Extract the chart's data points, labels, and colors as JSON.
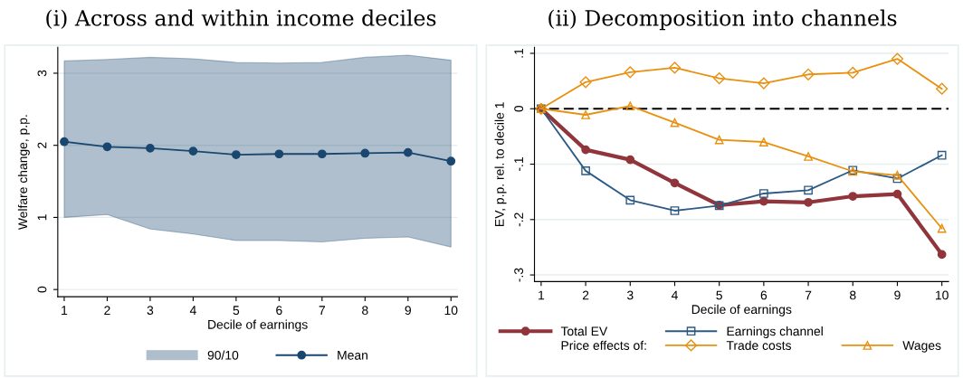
{
  "chart_data": [
    {
      "type": "line",
      "title": "(i) Across and within income deciles",
      "xlabel": "Decile of earnings",
      "ylabel": "Welfare change, p.p.",
      "x": [
        1,
        2,
        3,
        4,
        5,
        6,
        7,
        8,
        9,
        10
      ],
      "xlim": [
        0.85,
        10.15
      ],
      "xticks": [
        1,
        2,
        3,
        4,
        5,
        6,
        7,
        8,
        9,
        10
      ],
      "ylim": [
        -0.1,
        3.36
      ],
      "yticks": [
        0,
        1,
        2,
        3
      ],
      "grid": "y",
      "legend": "bottom",
      "annotations": [
        "90/10"
      ],
      "series": [
        {
          "name": "Mean",
          "type": "line",
          "lower": [
            1.0,
            1.04,
            0.84,
            0.77,
            0.68,
            0.68,
            0.66,
            0.71,
            0.73,
            0.59
          ],
          "upper": [
            3.17,
            3.19,
            3.22,
            3.2,
            3.15,
            3.14,
            3.15,
            3.22,
            3.25,
            3.18
          ],
          "color": "#1a476f",
          "marker": "circle",
          "values": [
            2.05,
            1.98,
            1.96,
            1.92,
            1.87,
            1.88,
            1.88,
            1.89,
            1.9,
            1.78
          ]
        }
      ]
    },
    {
      "type": "line",
      "title": "(ii) Decomposition into channels",
      "xlabel": "Decile of earnings",
      "ylabel": "EV, p.p. rel. to decile 1",
      "x": [
        1,
        2,
        3,
        4,
        5,
        6,
        7,
        8,
        9,
        10
      ],
      "xlim": [
        0.85,
        10.15
      ],
      "xticks": [
        1,
        2,
        3,
        4,
        5,
        6,
        7,
        8,
        9,
        10
      ],
      "ylim": [
        -0.312,
        0.111
      ],
      "yticks": [
        {
          "value": -0.3,
          "label": "-.3"
        },
        {
          "value": -0.2,
          "label": "-.2"
        },
        {
          "value": -0.1,
          "label": "-.1"
        },
        {
          "value": 0,
          "label": "0"
        },
        {
          "value": 0.1,
          "label": ".1"
        }
      ],
      "grid": "y",
      "legend": "bottom",
      "annotations": [
        "Price effects of:"
      ],
      "ref_lines": [
        {
          "axis": "y",
          "value": 0,
          "color": "#000000",
          "line_style": "dashed"
        }
      ],
      "series": [
        {
          "name": "Total EV",
          "type": "line",
          "color": "#90353b",
          "marker": "circle",
          "values": [
            0,
            -0.074,
            -0.092,
            -0.134,
            -0.174,
            -0.167,
            -0.169,
            -0.158,
            -0.154,
            -0.263
          ]
        },
        {
          "name": "Earnings channel",
          "type": "line",
          "color": "#2d5a84",
          "marker": "square",
          "values": [
            0,
            -0.112,
            -0.165,
            -0.184,
            -0.175,
            -0.153,
            -0.147,
            -0.111,
            -0.126,
            -0.084
          ]
        },
        {
          "name": "Trade costs",
          "type": "line",
          "color": "#e8900f",
          "marker": "diamond",
          "values": [
            0,
            0.048,
            0.066,
            0.074,
            0.055,
            0.046,
            0.062,
            0.065,
            0.09,
            0.036
          ]
        },
        {
          "name": "Wages",
          "type": "line",
          "color": "#e8900f",
          "marker": "triangle",
          "values": [
            0,
            -0.011,
            0.005,
            -0.025,
            -0.056,
            -0.06,
            -0.086,
            -0.113,
            -0.12,
            -0.216
          ]
        }
      ]
    }
  ]
}
